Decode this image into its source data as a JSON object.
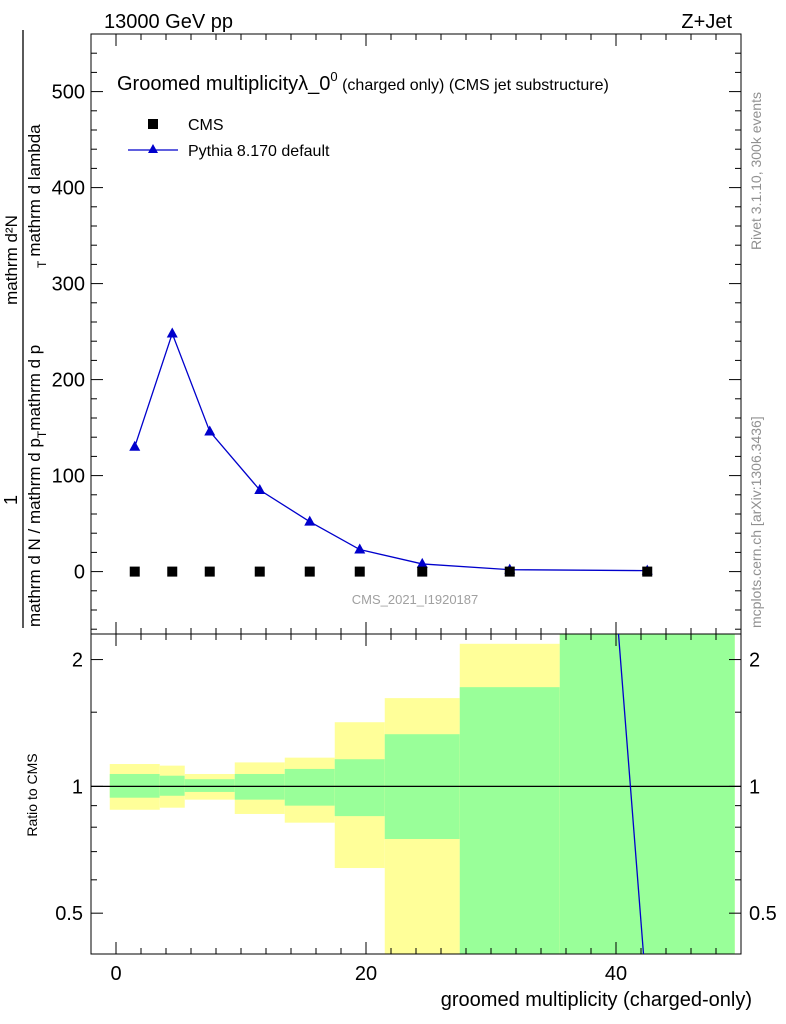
{
  "header": {
    "energy_label": "13000 GeV pp",
    "process_label": "Z+Jet"
  },
  "side_labels": {
    "rivet_info": "Rivet 3.1.10,  300k events",
    "mcplots_info": "mcplots.cern.ch [arXiv:1306.3436]"
  },
  "colors": {
    "mc_line": "#0000cc",
    "band_inner": "#99ff99",
    "band_outer": "#ffff99",
    "data_marker": "#000000"
  },
  "chart_data": [
    {
      "type": "line",
      "title_main": "Groomed multiplicityλ_0",
      "title_sup": "0",
      "title_tail": " (charged only) (CMS jet substructure)",
      "ylabel_frac_num": "1",
      "ylabel_lines": [
        "mathrm d N / mathrm d p_T mathrm d p_T mathrm d lambda",
        "mathrm d²N"
      ],
      "ylabel_left": "mathrm d N / mathrm d p",
      "ylabel_mid": "mathrm d p",
      "ylabel_right": "mathrm d lambda",
      "ylabel_top_num": "mathrm d²N",
      "ylabel_sub_T": "T",
      "watermark": "CMS_2021_I1920187",
      "xlim": [
        -2,
        50
      ],
      "ylim": [
        -65,
        560
      ],
      "yticks": [
        0,
        100,
        200,
        300,
        400,
        500
      ],
      "ytick_labels": [
        "0",
        "100",
        "200",
        "300",
        "400",
        "500"
      ],
      "legend_position": "top-left",
      "series": [
        {
          "name": "CMS",
          "marker": "square",
          "x": [
            1.5,
            4.5,
            7.5,
            11.5,
            15.5,
            19.5,
            24.5,
            31.5,
            42.5
          ],
          "y": [
            0,
            0,
            0,
            0,
            0,
            0,
            0,
            0,
            0
          ]
        },
        {
          "name": "Pythia 8.170 default",
          "marker": "triangle",
          "x": [
            1.5,
            4.5,
            7.5,
            11.5,
            15.5,
            19.5,
            24.5,
            31.5,
            42.5
          ],
          "y": [
            130,
            248,
            146,
            85,
            52,
            23,
            8,
            2,
            1
          ]
        }
      ]
    },
    {
      "type": "area",
      "ylabel": "Ratio to CMS",
      "xlabel": "groomed multiplicity (charged-only)",
      "xlim": [
        -2,
        50
      ],
      "ylim": [
        0.4,
        2.3
      ],
      "log_y": true,
      "xticks": [
        0,
        20,
        40
      ],
      "xtick_labels": [
        "0",
        "20",
        "40"
      ],
      "yticks": [
        0.5,
        1,
        2
      ],
      "ytick_labels": [
        "0.5",
        "1",
        "2"
      ],
      "bins": [
        {
          "lo": -0.5,
          "hi": 3.5,
          "inner": [
            0.94,
            1.07
          ],
          "outer": [
            0.88,
            1.13
          ]
        },
        {
          "lo": 3.5,
          "hi": 5.5,
          "inner": [
            0.95,
            1.06
          ],
          "outer": [
            0.89,
            1.12
          ]
        },
        {
          "lo": 5.5,
          "hi": 9.5,
          "inner": [
            0.97,
            1.04
          ],
          "outer": [
            0.93,
            1.07
          ]
        },
        {
          "lo": 9.5,
          "hi": 13.5,
          "inner": [
            0.93,
            1.07
          ],
          "outer": [
            0.86,
            1.14
          ]
        },
        {
          "lo": 13.5,
          "hi": 17.5,
          "inner": [
            0.9,
            1.1
          ],
          "outer": [
            0.82,
            1.17
          ]
        },
        {
          "lo": 17.5,
          "hi": 21.5,
          "inner": [
            0.85,
            1.16
          ],
          "outer": [
            0.64,
            1.42
          ]
        },
        {
          "lo": 21.5,
          "hi": 27.5,
          "inner": [
            0.75,
            1.33
          ],
          "outer": [
            0.4,
            1.62
          ]
        },
        {
          "lo": 27.5,
          "hi": 35.5,
          "inner": [
            0.4,
            1.72
          ],
          "outer": [
            0.4,
            2.18
          ]
        },
        {
          "lo": 35.5,
          "hi": 49.5,
          "inner": [
            0.4,
            2.3
          ],
          "outer": [
            0.4,
            2.3
          ]
        }
      ],
      "mc_ratio_line": {
        "x": [
          40.2,
          42.2
        ],
        "y": [
          2.3,
          0.4
        ]
      }
    }
  ]
}
